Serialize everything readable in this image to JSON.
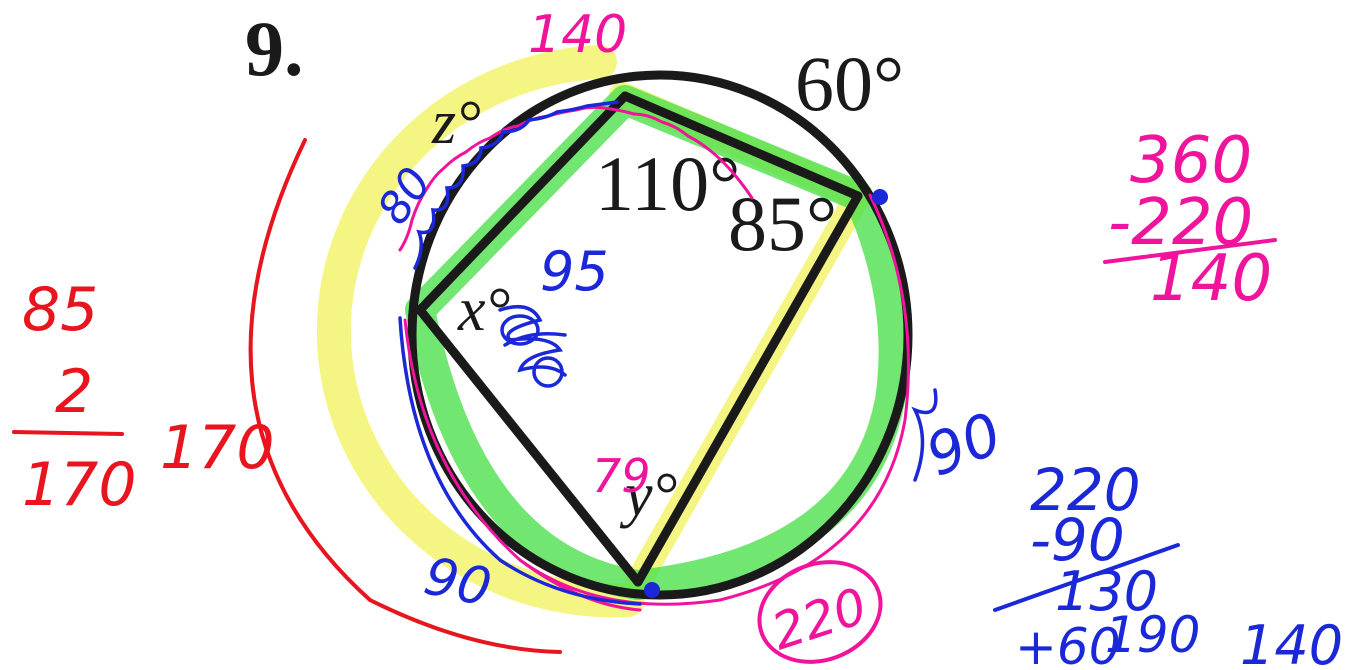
{
  "problem": {
    "number": "9."
  },
  "printed_labels": {
    "arc_top": "60°",
    "angle_top": "110°",
    "angle_right": "85°",
    "angle_x": "x°",
    "arc_z": "z°",
    "angle_y": "y°"
  },
  "annotations": {
    "red_left": {
      "top": "85",
      "middle": "2",
      "bottom": "170",
      "side": "170"
    },
    "pink_top_arc": "140",
    "pink_right": {
      "top": "360",
      "middle": "-220",
      "bottom": "140"
    },
    "pink_circled": "220",
    "pink_y_guess": "79",
    "blue_arc_z": "80",
    "blue_x_value": "95",
    "blue_bottom_arc": "90",
    "blue_right_arc": "90",
    "blue_calc": {
      "line1": "220",
      "line2": "-90",
      "line3": "130",
      "line4": "+60",
      "line5": "190"
    },
    "blue_bottom_right": "140"
  },
  "colors": {
    "ink_red": "#e8141e",
    "ink_pink": "#f0149c",
    "ink_blue": "#1a28d8",
    "highlight_green": "#4ee04e",
    "highlight_yellow": "#f2f25a",
    "print_black": "#1a1a1a"
  }
}
